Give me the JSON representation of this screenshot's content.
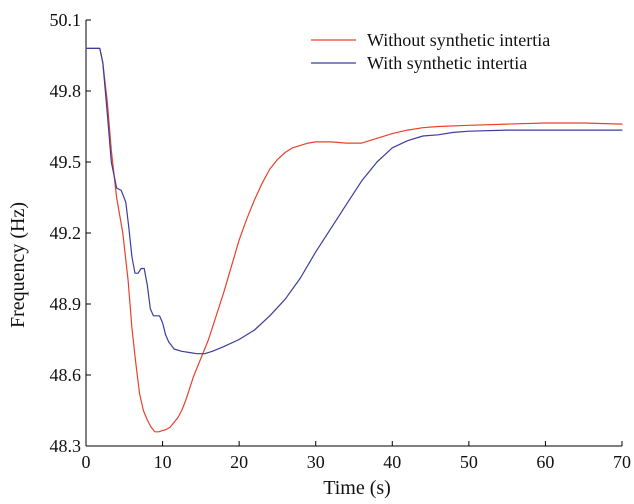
{
  "chart_data": {
    "type": "line",
    "xlabel": "Time (s)",
    "ylabel": "Frequency (Hz)",
    "xlim": [
      0,
      70
    ],
    "ylim": [
      48.3,
      50.1
    ],
    "xticks": [
      0,
      10,
      20,
      30,
      40,
      50,
      60,
      70
    ],
    "xtick_labels": [
      "0",
      "10",
      "20",
      "30",
      "40",
      "50",
      "60",
      "70"
    ],
    "yticks": [
      48.3,
      48.6,
      48.9,
      49.2,
      49.5,
      49.8,
      50.1
    ],
    "ytick_labels": [
      "48.3",
      "48.6",
      "48.9",
      "49.2",
      "49.5",
      "49.8",
      "50.1"
    ],
    "grid": false,
    "legend_position": "top-right",
    "series": [
      {
        "name": "Without synthetic intertia",
        "color": "#e8412c",
        "x": [
          0,
          1.0,
          1.8,
          2.2,
          2.8,
          3.3,
          4.0,
          4.8,
          5.5,
          6.0,
          6.5,
          7.0,
          7.5,
          8.0,
          8.5,
          9.0,
          9.5,
          10.0,
          10.5,
          11.0,
          11.5,
          12.0,
          12.5,
          13.0,
          13.5,
          14.0,
          14.5,
          15.0,
          16.0,
          17.0,
          18.0,
          19.0,
          20.0,
          21.0,
          22.0,
          23.0,
          24.0,
          25.0,
          26.0,
          27.0,
          28.0,
          29.0,
          30.0,
          32.0,
          34.0,
          36.0,
          38.0,
          40.0,
          42.0,
          44.0,
          46.0,
          50.0,
          55.0,
          60.0,
          65.0,
          70.0
        ],
        "values": [
          49.98,
          49.98,
          49.98,
          49.92,
          49.75,
          49.55,
          49.35,
          49.2,
          49.0,
          48.8,
          48.65,
          48.52,
          48.45,
          48.41,
          48.38,
          48.36,
          48.36,
          48.365,
          48.37,
          48.38,
          48.4,
          48.42,
          48.45,
          48.49,
          48.54,
          48.59,
          48.63,
          48.67,
          48.75,
          48.85,
          48.95,
          49.06,
          49.17,
          49.26,
          49.34,
          49.41,
          49.47,
          49.51,
          49.54,
          49.56,
          49.57,
          49.58,
          49.585,
          49.585,
          49.58,
          49.58,
          49.6,
          49.62,
          49.635,
          49.645,
          49.65,
          49.655,
          49.66,
          49.665,
          49.665,
          49.66
        ]
      },
      {
        "name": "With synthetic intertia",
        "color": "#3c3c9c",
        "x": [
          0,
          1.0,
          1.8,
          2.2,
          2.8,
          3.3,
          4.0,
          4.6,
          5.2,
          5.6,
          6.0,
          6.4,
          6.8,
          7.2,
          7.6,
          8.0,
          8.4,
          8.8,
          9.2,
          9.6,
          10.0,
          10.4,
          10.8,
          11.5,
          12.5,
          13.5,
          14.5,
          15.5,
          16.5,
          18.0,
          20.0,
          22.0,
          24.0,
          26.0,
          28.0,
          30.0,
          32.0,
          34.0,
          36.0,
          38.0,
          40.0,
          42.0,
          44.0,
          46.0,
          48.0,
          50.0,
          55.0,
          60.0,
          65.0,
          70.0
        ],
        "values": [
          49.98,
          49.98,
          49.98,
          49.92,
          49.7,
          49.5,
          49.39,
          49.38,
          49.33,
          49.22,
          49.1,
          49.03,
          49.03,
          49.05,
          49.05,
          48.98,
          48.88,
          48.85,
          48.85,
          48.85,
          48.82,
          48.77,
          48.74,
          48.71,
          48.7,
          48.695,
          48.69,
          48.69,
          48.7,
          48.72,
          48.75,
          48.79,
          48.85,
          48.92,
          49.01,
          49.12,
          49.22,
          49.32,
          49.42,
          49.5,
          49.56,
          49.59,
          49.61,
          49.615,
          49.625,
          49.63,
          49.635,
          49.635,
          49.635,
          49.635
        ]
      }
    ]
  }
}
